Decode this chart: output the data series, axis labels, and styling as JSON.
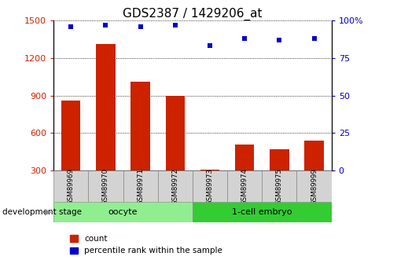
{
  "title": "GDS2387 / 1429206_at",
  "samples": [
    "GSM89969",
    "GSM89970",
    "GSM89971",
    "GSM89972",
    "GSM89973",
    "GSM89974",
    "GSM89975",
    "GSM89999"
  ],
  "counts": [
    860,
    1310,
    1010,
    895,
    310,
    510,
    470,
    540
  ],
  "percentile_ranks": [
    96,
    97,
    96,
    97,
    83,
    88,
    87,
    88
  ],
  "groups": [
    {
      "label": "oocyte",
      "indices": [
        0,
        1,
        2,
        3
      ],
      "color": "#90ee90"
    },
    {
      "label": "1-cell embryo",
      "indices": [
        4,
        5,
        6,
        7
      ],
      "color": "#33cc33"
    }
  ],
  "bar_color": "#cc2200",
  "dot_color": "#0000cc",
  "ylim_left": [
    300,
    1500
  ],
  "yticks_left": [
    300,
    600,
    900,
    1200,
    1500
  ],
  "ylim_right": [
    0,
    100
  ],
  "yticks_right": [
    0,
    25,
    50,
    75,
    100
  ],
  "grid_color": "#000000",
  "background_color": "#ffffff",
  "title_fontsize": 11,
  "bar_bottom": 300
}
